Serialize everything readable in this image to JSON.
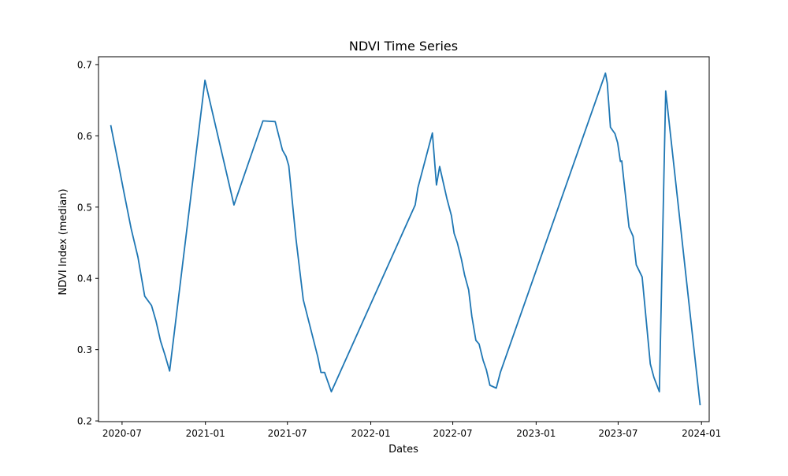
{
  "chart_data": {
    "type": "line",
    "title": "NDVI Time Series",
    "xlabel": "Dates",
    "ylabel": "NDVI Index (median)",
    "grid": false,
    "legend": "none",
    "xlim": [
      "2020-05-10",
      "2024-01-18"
    ],
    "ylim": [
      0.199,
      0.711
    ],
    "x_ticks": [
      {
        "date": "2020-07-01",
        "label": "2020-07"
      },
      {
        "date": "2021-01-01",
        "label": "2021-01"
      },
      {
        "date": "2021-07-01",
        "label": "2021-07"
      },
      {
        "date": "2022-01-01",
        "label": "2022-01"
      },
      {
        "date": "2022-07-01",
        "label": "2022-07"
      },
      {
        "date": "2023-01-01",
        "label": "2023-01"
      },
      {
        "date": "2023-07-01",
        "label": "2023-07"
      },
      {
        "date": "2024-01-01",
        "label": "2024-01"
      }
    ],
    "y_ticks": [
      {
        "value": 0.2,
        "label": "0.2"
      },
      {
        "value": 0.3,
        "label": "0.3"
      },
      {
        "value": 0.4,
        "label": "0.4"
      },
      {
        "value": 0.5,
        "label": "0.5"
      },
      {
        "value": 0.6,
        "label": "0.6"
      },
      {
        "value": 0.7,
        "label": "0.7"
      }
    ],
    "colors": {
      "series": "#1f77b4",
      "axes": "#000000",
      "background": "#ffffff"
    },
    "series": [
      {
        "x": [
          "2020-06-06",
          "2020-06-21",
          "2020-07-06",
          "2020-07-21",
          "2020-08-05",
          "2020-08-20",
          "2020-09-04",
          "2020-09-14",
          "2020-09-24",
          "2020-10-04",
          "2020-10-14",
          "2020-12-31",
          "2021-03-05",
          "2021-05-08",
          "2021-06-04",
          "2021-06-20",
          "2021-06-28",
          "2021-07-04",
          "2021-07-20",
          "2021-08-05",
          "2021-08-21",
          "2021-09-06",
          "2021-09-13",
          "2021-09-21",
          "2021-10-06",
          "2022-04-09",
          "2022-04-15",
          "2022-05-17",
          "2022-05-26",
          "2022-06-02",
          "2022-06-18",
          "2022-06-28",
          "2022-07-04",
          "2022-07-11",
          "2022-07-20",
          "2022-07-27",
          "2022-08-05",
          "2022-08-12",
          "2022-08-21",
          "2022-08-28",
          "2022-09-06",
          "2022-09-13",
          "2022-09-21",
          "2022-10-05",
          "2022-10-14",
          "2023-06-03",
          "2023-06-07",
          "2023-06-14",
          "2023-06-24",
          "2023-06-30",
          "2023-07-06",
          "2023-07-09",
          "2023-07-14",
          "2023-07-25",
          "2023-08-03",
          "2023-08-10",
          "2023-08-23",
          "2023-09-10",
          "2023-09-18",
          "2023-09-30",
          "2023-10-14",
          "2023-12-29"
        ],
        "y": [
          0.615,
          0.567,
          0.518,
          0.47,
          0.43,
          0.375,
          0.362,
          0.34,
          0.312,
          0.292,
          0.27,
          0.678,
          0.503,
          0.621,
          0.62,
          0.58,
          0.571,
          0.558,
          0.455,
          0.37,
          0.33,
          0.29,
          0.268,
          0.268,
          0.241,
          0.503,
          0.527,
          0.604,
          0.531,
          0.557,
          0.512,
          0.488,
          0.463,
          0.45,
          0.427,
          0.405,
          0.384,
          0.347,
          0.313,
          0.308,
          0.285,
          0.272,
          0.25,
          0.246,
          0.268,
          0.688,
          0.674,
          0.612,
          0.603,
          0.59,
          0.564,
          0.565,
          0.535,
          0.472,
          0.459,
          0.419,
          0.402,
          0.28,
          0.261,
          0.241,
          0.663,
          0.222
        ]
      }
    ]
  }
}
